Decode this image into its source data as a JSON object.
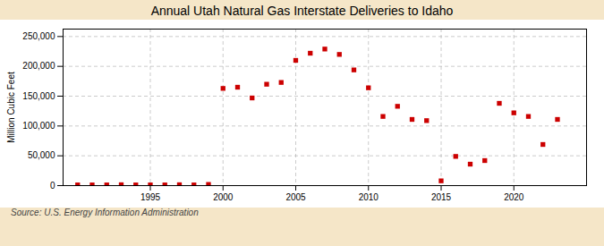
{
  "chart_data": {
    "type": "scatter",
    "title": "Annual Utah Natural Gas Interstate Deliveries to Idaho",
    "ylabel": "Million Cubic Feet",
    "source": "Source: U.S. Energy Information Administration",
    "x": [
      1990,
      1991,
      1992,
      1993,
      1994,
      1995,
      1996,
      1997,
      1998,
      1999,
      2000,
      2001,
      2002,
      2003,
      2004,
      2005,
      2006,
      2007,
      2008,
      2009,
      2010,
      2011,
      2012,
      2013,
      2014,
      2015,
      2016,
      2017,
      2018,
      2019,
      2020,
      2021,
      2022,
      2023
    ],
    "values": [
      1200,
      1200,
      1200,
      1500,
      1200,
      1200,
      1200,
      1500,
      1200,
      2000,
      163000,
      165000,
      147000,
      170000,
      173000,
      210000,
      222000,
      229000,
      220000,
      194000,
      164000,
      116000,
      133000,
      111000,
      109000,
      8000,
      49000,
      36000,
      42000,
      138000,
      122000,
      116000,
      69000,
      111000
    ],
    "color": "#cc0000",
    "marker": "square",
    "xlim": [
      1989,
      2025
    ],
    "ylim": [
      0,
      262500
    ],
    "xticks": [
      1995,
      2000,
      2005,
      2010,
      2015,
      2020
    ],
    "yticks": [
      0,
      {
        "value": 50000,
        "label": "50,000"
      },
      {
        "value": 100000,
        "label": "100,000"
      },
      {
        "value": 150000,
        "label": "150,000"
      },
      {
        "value": 200000,
        "label": "200,000"
      },
      {
        "value": 250000,
        "label": "250,000"
      }
    ],
    "grid": true
  }
}
